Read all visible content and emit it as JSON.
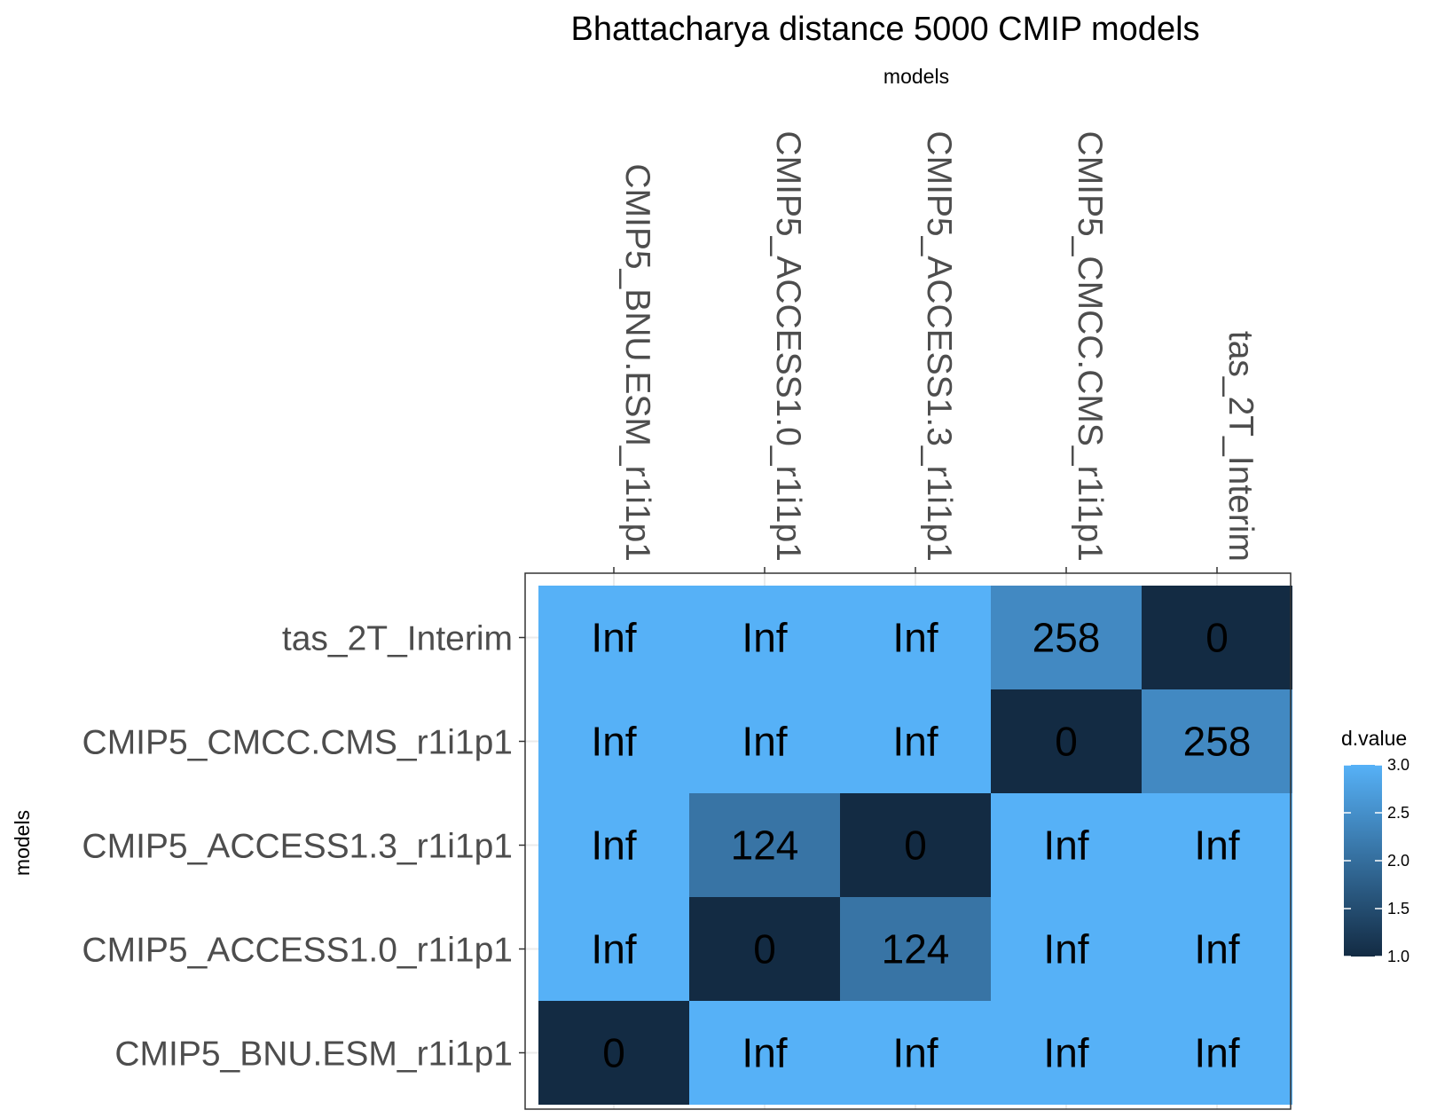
{
  "chart_data": {
    "type": "heatmap",
    "title": "Bhattacharya distance 5000 CMIP models",
    "xlabel": "models",
    "ylabel": "models",
    "x_categories": [
      "CMIP5_BNU.ESM_r1i1p1",
      "CMIP5_ACCESS1.0_r1i1p1",
      "CMIP5_ACCESS1.3_r1i1p1",
      "CMIP5_CMCC.CMS_r1i1p1",
      "tas_2T_Interim"
    ],
    "y_categories": [
      "tas_2T_Interim",
      "CMIP5_CMCC.CMS_r1i1p1",
      "CMIP5_ACCESS1.3_r1i1p1",
      "CMIP5_ACCESS1.0_r1i1p1",
      "CMIP5_BNU.ESM_r1i1p1"
    ],
    "cells": [
      [
        {
          "label": "Inf",
          "value": 3.0
        },
        {
          "label": "Inf",
          "value": 3.0
        },
        {
          "label": "Inf",
          "value": 3.0
        },
        {
          "label": "258",
          "value": 2.41
        },
        {
          "label": "0",
          "value": 1.0
        }
      ],
      [
        {
          "label": "Inf",
          "value": 3.0
        },
        {
          "label": "Inf",
          "value": 3.0
        },
        {
          "label": "Inf",
          "value": 3.0
        },
        {
          "label": "0",
          "value": 1.0
        },
        {
          "label": "258",
          "value": 2.41
        }
      ],
      [
        {
          "label": "Inf",
          "value": 3.0
        },
        {
          "label": "124",
          "value": 2.09
        },
        {
          "label": "0",
          "value": 1.0
        },
        {
          "label": "Inf",
          "value": 3.0
        },
        {
          "label": "Inf",
          "value": 3.0
        }
      ],
      [
        {
          "label": "Inf",
          "value": 3.0
        },
        {
          "label": "0",
          "value": 1.0
        },
        {
          "label": "124",
          "value": 2.09
        },
        {
          "label": "Inf",
          "value": 3.0
        },
        {
          "label": "Inf",
          "value": 3.0
        }
      ],
      [
        {
          "label": "0",
          "value": 1.0
        },
        {
          "label": "Inf",
          "value": 3.0
        },
        {
          "label": "Inf",
          "value": 3.0
        },
        {
          "label": "Inf",
          "value": 3.0
        },
        {
          "label": "Inf",
          "value": 3.0
        }
      ]
    ],
    "legend": {
      "title": "d.value",
      "ticks": [
        "3.0",
        "2.5",
        "2.0",
        "1.5",
        "1.0"
      ],
      "range": [
        1.0,
        3.0
      ],
      "color_low": "#132b43",
      "color_high": "#56b1f7",
      "placement": "right"
    },
    "x_axis_position": "top",
    "grid": true
  }
}
